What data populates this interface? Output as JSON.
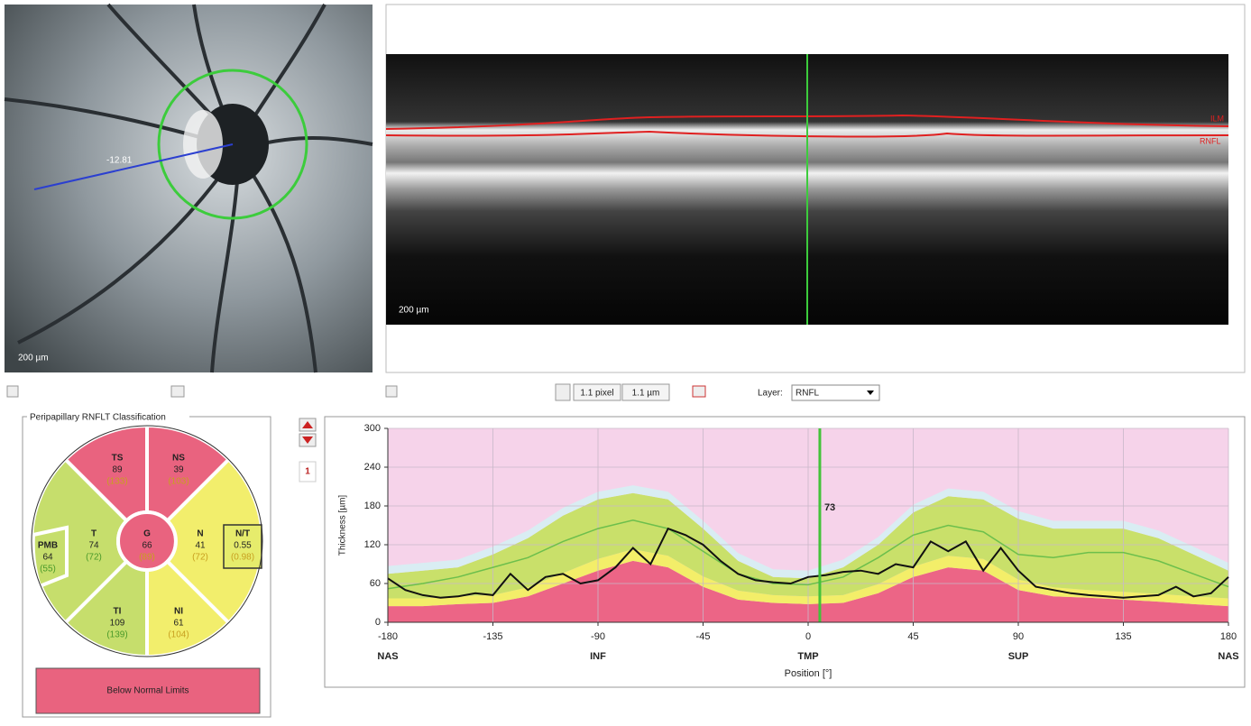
{
  "fundus": {
    "measure_label": "-12.81",
    "scale_label": "200 µm"
  },
  "bscan": {
    "layer_labels": [
      "ILM",
      "RNFL"
    ],
    "scale_label": "200 µm"
  },
  "toolbar": {
    "pixel": "1.1 pixel",
    "micron": "1.1 µm",
    "layer_label": "Layer:",
    "layer_value": "RNFL",
    "page": "1"
  },
  "classification": {
    "title": "Peripapillary RNFLT Classification",
    "sectors": [
      {
        "label": "TS",
        "value": 89,
        "normal": "(133)",
        "color": "#e9637f"
      },
      {
        "label": "NS",
        "value": 39,
        "normal": "(103)",
        "color": "#e9637f"
      },
      {
        "label": "T",
        "value": 74,
        "normal": "(72)",
        "color": "#c6de6c"
      },
      {
        "label": "G",
        "value": 66,
        "normal": "(89)",
        "color": "#e9637f"
      },
      {
        "label": "N",
        "value": 41,
        "normal": "(72)",
        "color": "#f2ee6c"
      },
      {
        "label": "NI",
        "value": 61,
        "normal": "(104)",
        "color": "#f2ee6c"
      },
      {
        "label": "TI",
        "value": 109,
        "normal": "(139)",
        "color": "#c6de6c"
      },
      {
        "label": "PMB",
        "value": 64,
        "normal": "(55)",
        "color": "#c6de6c"
      },
      {
        "label": "N/T",
        "value": 0.55,
        "normal": "(0.98)",
        "color": "#e6ec6c"
      }
    ],
    "result": "Below Normal Limits",
    "result_color": "#e9637f"
  },
  "chart_data": {
    "type": "area",
    "y_label": "Thickness [µm]",
    "x_label": "Position [°]",
    "xlim": [
      -180,
      180
    ],
    "ylim": [
      0,
      300
    ],
    "xticks": [
      -180,
      -135,
      -90,
      -45,
      0,
      45,
      90,
      135,
      180
    ],
    "yticks": [
      0,
      60,
      120,
      180,
      240,
      300
    ],
    "grid": true,
    "sector_labels": {
      "x": [
        -180,
        -90,
        0,
        90,
        180
      ],
      "labels": [
        "NAS",
        "INF",
        "TMP",
        "SUP",
        "NAS"
      ]
    },
    "background": "#f6d3ea",
    "band_x": [
      -180,
      -165,
      -150,
      -135,
      -120,
      -105,
      -90,
      -75,
      -60,
      -45,
      -30,
      -15,
      0,
      15,
      30,
      45,
      60,
      75,
      90,
      105,
      120,
      135,
      150,
      165,
      180
    ],
    "bands": [
      {
        "color": "#ec6586",
        "values": [
          25,
          25,
          28,
          30,
          40,
          60,
          80,
          95,
          85,
          55,
          35,
          30,
          28,
          30,
          45,
          70,
          85,
          80,
          50,
          40,
          38,
          35,
          32,
          28,
          25
        ]
      },
      {
        "color": "#f3ee69",
        "values": [
          12,
          12,
          12,
          12,
          14,
          16,
          18,
          18,
          18,
          16,
          14,
          12,
          12,
          12,
          14,
          16,
          18,
          18,
          16,
          14,
          12,
          12,
          12,
          12,
          12
        ]
      },
      {
        "color": "#c9e06a",
        "values": [
          38,
          43,
          45,
          63,
          76,
          89,
          92,
          87,
          87,
          74,
          46,
          28,
          28,
          43,
          61,
          84,
          92,
          92,
          94,
          91,
          95,
          98,
          86,
          65,
          43
        ]
      },
      {
        "color": "#d9edf3",
        "values": [
          12,
          12,
          12,
          12,
          12,
          12,
          12,
          12,
          12,
          12,
          12,
          12,
          12,
          12,
          12,
          12,
          12,
          12,
          12,
          12,
          12,
          12,
          12,
          12,
          12
        ]
      }
    ],
    "mean": {
      "color": "#6cbf4c",
      "values": [
        52,
        60,
        70,
        85,
        100,
        125,
        145,
        158,
        145,
        110,
        75,
        60,
        58,
        70,
        100,
        135,
        150,
        140,
        105,
        100,
        108,
        108,
        95,
        75,
        55
      ]
    },
    "measured": {
      "color": "#111111",
      "x": [
        -180,
        -172.5,
        -165,
        -157.5,
        -150,
        -142.5,
        -135,
        -127.5,
        -120,
        -112.5,
        -105,
        -97.5,
        -90,
        -82.5,
        -75,
        -67.5,
        -60,
        -52.5,
        -45,
        -37.5,
        -30,
        -22.5,
        -15,
        -7.5,
        0,
        7.5,
        15,
        22.5,
        30,
        37.5,
        45,
        52.5,
        60,
        67.5,
        75,
        82.5,
        90,
        97.5,
        105,
        112.5,
        120,
        127.5,
        135,
        142.5,
        150,
        157.5,
        165,
        172.5,
        180
      ],
      "values": [
        68,
        50,
        42,
        38,
        40,
        45,
        42,
        75,
        50,
        70,
        75,
        60,
        65,
        85,
        115,
        90,
        145,
        135,
        120,
        95,
        75,
        65,
        62,
        60,
        70,
        73,
        78,
        80,
        75,
        90,
        85,
        125,
        110,
        125,
        80,
        115,
        80,
        55,
        50,
        45,
        42,
        40,
        38,
        40,
        42,
        55,
        40,
        45,
        70
      ]
    },
    "cursor": {
      "x": 5,
      "value": 73,
      "color": "#44c23a"
    }
  }
}
